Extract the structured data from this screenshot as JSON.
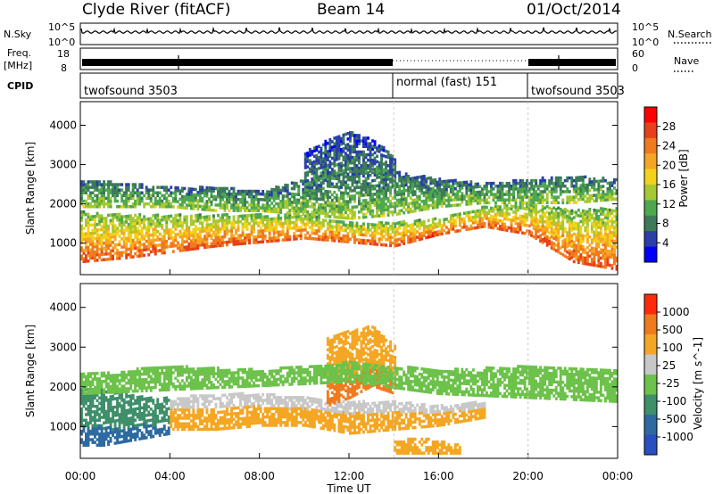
{
  "header": {
    "title": "Clyde River (fitACF)",
    "beam": "Beam 14",
    "date": "01/Oct/2014"
  },
  "noise_panel": {
    "left_label": "N.Sky",
    "left_ticks": [
      "10^5",
      "10^0"
    ],
    "right_ticks": [
      "10^5",
      "10^0"
    ],
    "right_label": "N.Search"
  },
  "freq_panel": {
    "left_label_1": "Freq.",
    "left_label_2": "[MHz]",
    "left_ticks": [
      "18",
      "8"
    ],
    "right_ticks": [
      "60",
      "0"
    ],
    "right_label": "Nave"
  },
  "cpid_panel": {
    "label": "CPID",
    "segments": [
      {
        "name": "twofsound 3503",
        "start_hour": 0,
        "end_hour": 14
      },
      {
        "name": "normal (fast) 151",
        "start_hour": 14,
        "end_hour": 20
      },
      {
        "name": "twofsound 3503",
        "start_hour": 20,
        "end_hour": 24
      }
    ]
  },
  "power_panel": {
    "ylabel": "Slant Range [km]",
    "colorbar_label": "Power [dB]",
    "colorbar_ticks": [
      "28",
      "24",
      "20",
      "16",
      "12",
      "8",
      "4"
    ],
    "colors": [
      "#0000ff",
      "#2a3fa8",
      "#3c7a5a",
      "#4fa84e",
      "#a6c832",
      "#f2d21a",
      "#f5a623",
      "#f07a1e",
      "#e8401a",
      "#ff0000"
    ]
  },
  "velocity_panel": {
    "ylabel": "Slant Range [km]",
    "colorbar_label": "Velocity [m s^-1]",
    "colorbar_ticks": [
      "1000",
      "500",
      "100",
      "25",
      "-25",
      "-100",
      "-500",
      "-1000"
    ],
    "colors": [
      "#2a4fbf",
      "#2e6aa0",
      "#3f8f6a",
      "#6cc24a",
      "#c8c8c8",
      "#f5a623",
      "#f07a1e",
      "#ff2a0a"
    ]
  },
  "xaxis": {
    "label": "Time UT",
    "ticks": [
      "00:00",
      "04:00",
      "08:00",
      "12:00",
      "16:00",
      "20:00",
      "00:00"
    ]
  },
  "chart_data": [
    {
      "type": "heatmap",
      "title": "Clyde River (fitACF)",
      "subtitle": "Beam 14",
      "xlabel": "Time UT",
      "ylabel": "Slant Range [km]",
      "xlim": [
        0,
        24
      ],
      "ylim": [
        200,
        4600
      ],
      "yticks": [
        1000,
        2000,
        3000,
        4000
      ],
      "zlabel": "Power [dB]",
      "zlim": [
        0,
        32
      ],
      "bands": [
        {
          "x": [
            0,
            2,
            4,
            6,
            8,
            10,
            12,
            14,
            16,
            18,
            20,
            22,
            24
          ],
          "y_low": [
            500,
            600,
            750,
            900,
            1000,
            1100,
            1000,
            900,
            1200,
            1400,
            1200,
            500,
            300
          ],
          "y_high": [
            1800,
            1700,
            1700,
            1700,
            1700,
            1700,
            1500,
            1500,
            1600,
            1900,
            2000,
            1800,
            1900
          ],
          "value": 26
        },
        {
          "x": [
            0,
            2,
            4,
            6,
            8,
            10,
            12,
            14,
            16,
            18,
            20,
            22,
            24
          ],
          "y_low": [
            1900,
            1900,
            1900,
            1800,
            1800,
            1700,
            1600,
            1700,
            1900,
            2000,
            2000,
            2000,
            2100
          ],
          "y_high": [
            2600,
            2500,
            2400,
            2400,
            2300,
            2600,
            2900,
            2800,
            2600,
            2500,
            2600,
            2700,
            2600
          ],
          "value": 14
        },
        {
          "x": [
            10,
            11,
            12,
            13,
            14
          ],
          "y_low": [
            2400,
            2600,
            2800,
            2800,
            2600
          ],
          "y_high": [
            3300,
            3600,
            3800,
            3600,
            3200
          ],
          "value": 9
        }
      ]
    },
    {
      "type": "heatmap",
      "xlabel": "Time UT",
      "ylabel": "Slant Range [km]",
      "xlim": [
        0,
        24
      ],
      "ylim": [
        200,
        4600
      ],
      "yticks": [
        1000,
        2000,
        3000,
        4000
      ],
      "zlabel": "Velocity [m s^-1]",
      "zlim": [
        -1000,
        1000
      ],
      "bands": [
        {
          "x": [
            0,
            1,
            2,
            3,
            4
          ],
          "y_low": [
            500,
            500,
            600,
            700,
            800
          ],
          "y_high": [
            2000,
            1900,
            1800,
            1700,
            1700
          ],
          "value": 120
        },
        {
          "x": [
            4,
            6,
            8,
            10,
            12,
            14,
            16,
            18
          ],
          "y_low": [
            900,
            900,
            1000,
            1000,
            800,
            900,
            1000,
            1200
          ],
          "y_high": [
            1700,
            1800,
            1800,
            1700,
            1600,
            1600,
            1500,
            1600
          ],
          "value": -150
        },
        {
          "x": [
            11,
            12,
            13,
            14
          ],
          "y_low": [
            1500,
            1700,
            2000,
            1800
          ],
          "y_high": [
            3200,
            3400,
            3500,
            3000
          ],
          "value": -600
        },
        {
          "x": [
            0,
            4,
            8,
            12,
            16,
            20,
            24
          ],
          "y_low": [
            1800,
            1900,
            2000,
            2100,
            1800,
            1700,
            1600
          ],
          "y_high": [
            2300,
            2500,
            2400,
            2600,
            2400,
            2500,
            2400
          ],
          "value": 0
        },
        {
          "x": [
            14,
            15,
            16,
            17
          ],
          "y_low": [
            300,
            300,
            300,
            300
          ],
          "y_high": [
            600,
            700,
            600,
            500
          ],
          "value": -300
        }
      ]
    }
  ]
}
